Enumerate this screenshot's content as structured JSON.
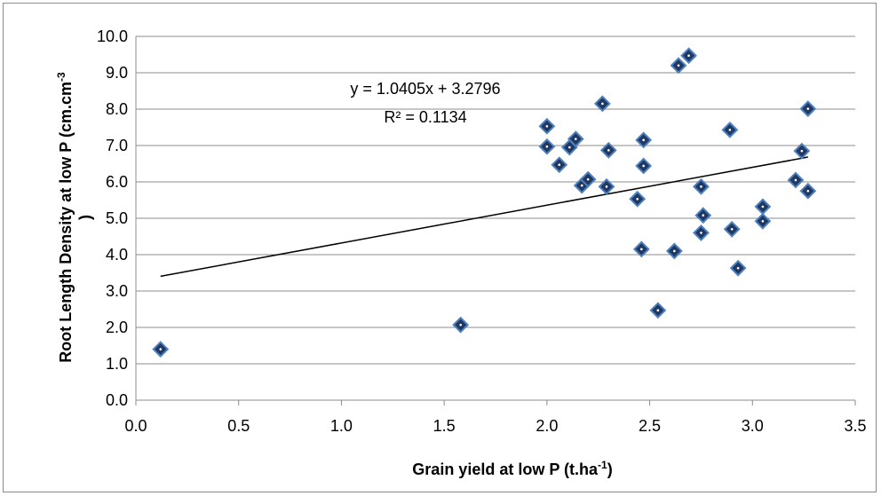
{
  "chart_data": {
    "type": "scatter",
    "title": "",
    "xlabel": "Grain yield at low P (t.ha",
    "xlabel_sup": "-1",
    "xlabel_end": ")",
    "ylabel": "Root Length Density at low P (cm.cm",
    "ylabel_sup": "-3",
    "ylabel_end": ")",
    "xlim": [
      0.0,
      3.5
    ],
    "ylim": [
      0.0,
      10.0
    ],
    "x_ticks": [
      "0.0",
      "0.5",
      "1.0",
      "1.5",
      "2.0",
      "2.5",
      "3.0",
      "3.5"
    ],
    "y_ticks": [
      "0.0",
      "1.0",
      "2.0",
      "3.0",
      "4.0",
      "5.0",
      "6.0",
      "7.0",
      "8.0",
      "9.0",
      "10.0"
    ],
    "grid": "horizontal",
    "marker_color": "#1f3864",
    "marker_edge": "#4f81bd",
    "points": [
      {
        "x": 0.12,
        "y": 1.4
      },
      {
        "x": 1.58,
        "y": 2.07
      },
      {
        "x": 2.0,
        "y": 7.53
      },
      {
        "x": 2.0,
        "y": 6.97
      },
      {
        "x": 2.06,
        "y": 6.47
      },
      {
        "x": 2.11,
        "y": 6.95
      },
      {
        "x": 2.14,
        "y": 7.18
      },
      {
        "x": 2.17,
        "y": 5.9
      },
      {
        "x": 2.2,
        "y": 6.07
      },
      {
        "x": 2.27,
        "y": 8.15
      },
      {
        "x": 2.29,
        "y": 5.87
      },
      {
        "x": 2.3,
        "y": 6.87
      },
      {
        "x": 2.44,
        "y": 5.53
      },
      {
        "x": 2.46,
        "y": 4.15
      },
      {
        "x": 2.47,
        "y": 6.44
      },
      {
        "x": 2.47,
        "y": 7.15
      },
      {
        "x": 2.54,
        "y": 2.47
      },
      {
        "x": 2.62,
        "y": 4.1
      },
      {
        "x": 2.64,
        "y": 9.2
      },
      {
        "x": 2.69,
        "y": 9.47
      },
      {
        "x": 2.75,
        "y": 5.87
      },
      {
        "x": 2.75,
        "y": 4.6
      },
      {
        "x": 2.76,
        "y": 5.08
      },
      {
        "x": 2.89,
        "y": 7.43
      },
      {
        "x": 2.9,
        "y": 4.7
      },
      {
        "x": 2.93,
        "y": 3.63
      },
      {
        "x": 3.05,
        "y": 4.92
      },
      {
        "x": 3.05,
        "y": 5.32
      },
      {
        "x": 3.21,
        "y": 6.05
      },
      {
        "x": 3.24,
        "y": 6.85
      },
      {
        "x": 3.27,
        "y": 5.75
      },
      {
        "x": 3.27,
        "y": 8.01
      }
    ],
    "trendline": {
      "slope": 1.0405,
      "intercept": 3.2796,
      "x_range": [
        0.12,
        3.27
      ],
      "equation": "y = 1.0405x + 3.2796",
      "r2_label": "R² = 0.1134"
    }
  }
}
